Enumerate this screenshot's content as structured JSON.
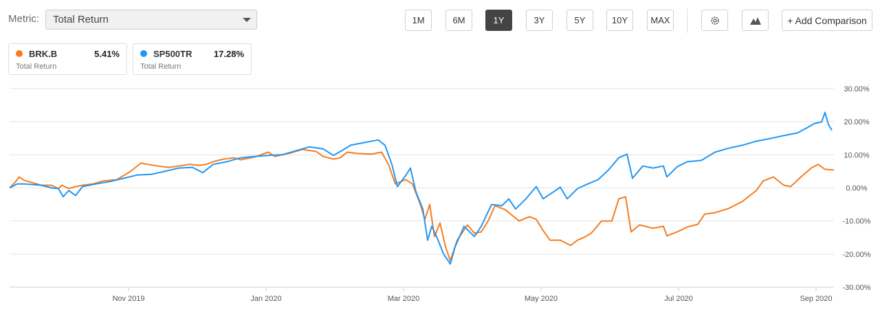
{
  "toolbar": {
    "metric_label": "Metric:",
    "metric_value": "Total Return",
    "periods": [
      "1M",
      "6M",
      "1Y",
      "3Y",
      "5Y",
      "10Y",
      "MAX"
    ],
    "active_period": "1Y",
    "add_comparison": "+ Add Comparison"
  },
  "chart_data": {
    "type": "line",
    "series": [
      {
        "name": "BRK.B",
        "color": "#f57c1f",
        "return_label": "5.41%",
        "return_caption": "Total Return",
        "x": [
          9.27,
          9.35,
          9.41,
          9.48,
          9.58,
          9.73,
          9.88,
          9.98,
          10.03,
          10.13,
          10.23,
          10.33,
          10.48,
          10.63,
          10.83,
          11.03,
          11.18,
          11.28,
          11.43,
          11.58,
          11.73,
          11.88,
          12.03,
          12.13,
          12.23,
          12.38,
          12.53,
          12.63,
          12.83,
          13.03,
          13.13,
          13.33,
          13.53,
          13.73,
          13.83,
          13.98,
          14.08,
          14.18,
          14.33,
          14.53,
          14.68,
          14.78,
          14.88,
          15.03,
          15.13,
          15.25,
          15.31,
          15.38,
          15.45,
          15.53,
          15.61,
          15.68,
          15.78,
          15.93,
          16.03,
          16.13,
          16.23,
          16.33,
          16.48,
          16.58,
          16.68,
          16.83,
          16.93,
          17.03,
          17.13,
          17.28,
          17.43,
          17.53,
          17.63,
          17.73,
          17.88,
          18.03,
          18.13,
          18.23,
          18.31,
          18.43,
          18.63,
          18.78,
          18.83,
          18.98,
          19.13,
          19.28,
          19.38,
          19.53,
          19.73,
          19.93,
          20.13,
          20.23,
          20.38,
          20.53,
          20.63,
          20.78,
          20.93,
          21.03,
          21.13,
          21.26
        ],
        "values": [
          0,
          1.7,
          3.3,
          2.3,
          1.7,
          0.8,
          0.8,
          -0.2,
          0.8,
          -0.2,
          0.4,
          0.8,
          1.2,
          2.1,
          2.5,
          5.0,
          7.5,
          7.1,
          6.6,
          6.2,
          6.6,
          7.1,
          6.8,
          7.1,
          7.9,
          8.7,
          9.1,
          8.5,
          9.3,
          10.8,
          9.5,
          10.4,
          11.6,
          11.0,
          9.5,
          8.7,
          9.1,
          10.8,
          10.4,
          10.2,
          10.8,
          7.1,
          1.2,
          2.5,
          1.2,
          -5.4,
          -9.5,
          -5.0,
          -14.7,
          -10.6,
          -17.8,
          -22.0,
          -15.8,
          -11.2,
          -13.7,
          -13.3,
          -10.0,
          -5.4,
          -6.6,
          -8.3,
          -10.0,
          -8.7,
          -9.5,
          -12.9,
          -15.8,
          -15.8,
          -17.4,
          -15.8,
          -14.9,
          -13.7,
          -10.0,
          -10.0,
          -3.3,
          -2.7,
          -13.3,
          -11.2,
          -12.2,
          -11.6,
          -14.5,
          -13.3,
          -11.8,
          -11.0,
          -7.9,
          -7.5,
          -6.2,
          -4.1,
          -0.8,
          2.1,
          3.3,
          0.8,
          0.4,
          3.3,
          6.0,
          7.1,
          5.6,
          5.4
        ]
      },
      {
        "name": "SP500TR",
        "color": "#2196f3",
        "return_label": "17.28%",
        "return_caption": "Total Return",
        "x": [
          9.27,
          9.38,
          9.48,
          9.73,
          9.88,
          9.98,
          10.05,
          10.13,
          10.23,
          10.33,
          10.53,
          10.73,
          10.93,
          11.13,
          11.33,
          11.53,
          11.73,
          11.93,
          12.08,
          12.23,
          12.43,
          12.63,
          12.83,
          13.03,
          13.23,
          13.43,
          13.63,
          13.83,
          13.98,
          14.13,
          14.23,
          14.43,
          14.63,
          14.73,
          14.83,
          14.91,
          15.03,
          15.1,
          15.18,
          15.28,
          15.35,
          15.41,
          15.48,
          15.58,
          15.68,
          15.75,
          15.88,
          16.03,
          16.13,
          16.28,
          16.43,
          16.53,
          16.63,
          16.78,
          16.93,
          17.03,
          17.18,
          17.28,
          17.38,
          17.53,
          17.68,
          17.83,
          17.98,
          18.13,
          18.25,
          18.33,
          18.48,
          18.63,
          18.78,
          18.83,
          18.98,
          19.13,
          19.33,
          19.53,
          19.73,
          19.93,
          20.13,
          20.33,
          20.53,
          20.73,
          20.88,
          20.98,
          21.08,
          21.13,
          21.18,
          21.23
        ],
        "values": [
          0,
          1.2,
          1.2,
          0.8,
          0,
          -0.2,
          -2.7,
          -0.8,
          -2.3,
          0.4,
          1.2,
          1.9,
          2.9,
          3.9,
          4.1,
          5.0,
          6.0,
          6.2,
          4.6,
          7.1,
          7.9,
          9.1,
          9.5,
          9.8,
          10.0,
          11.2,
          12.4,
          11.8,
          9.8,
          11.6,
          12.9,
          13.7,
          14.5,
          12.9,
          7.1,
          0.4,
          3.7,
          6.0,
          -1.2,
          -6.4,
          -15.8,
          -11.6,
          -14.7,
          -19.9,
          -23.0,
          -17.8,
          -11.6,
          -14.7,
          -11.6,
          -5.0,
          -5.4,
          -3.3,
          -6.4,
          -3.3,
          0.4,
          -3.3,
          -1.2,
          0.2,
          -3.3,
          -0.2,
          1.2,
          2.5,
          5.4,
          9.1,
          10.2,
          2.9,
          6.6,
          6.0,
          6.6,
          3.3,
          6.4,
          7.9,
          8.3,
          10.8,
          12.0,
          12.9,
          14.1,
          14.9,
          15.8,
          16.6,
          18.3,
          19.5,
          19.9,
          22.8,
          19.1,
          17.4
        ]
      }
    ],
    "xlim": [
      9.27,
      21.26
    ],
    "xticks": [
      {
        "value": 11,
        "label": "Nov 2019"
      },
      {
        "value": 13,
        "label": "Jan 2020"
      },
      {
        "value": 15,
        "label": "Mar 2020"
      },
      {
        "value": 17,
        "label": "May 2020"
      },
      {
        "value": 19,
        "label": "Jul 2020"
      },
      {
        "value": 21,
        "label": "Sep 2020"
      }
    ],
    "ylim": [
      -30,
      30
    ],
    "yticks": [
      {
        "value": 30,
        "label": "30.00%"
      },
      {
        "value": 20,
        "label": "20.00%"
      },
      {
        "value": 10,
        "label": "10.00%"
      },
      {
        "value": 0,
        "label": "0.00%"
      },
      {
        "value": -10,
        "label": "-10.00%"
      },
      {
        "value": -20,
        "label": "-20.00%"
      },
      {
        "value": -30,
        "label": "-30.00%"
      }
    ],
    "grid": true
  }
}
